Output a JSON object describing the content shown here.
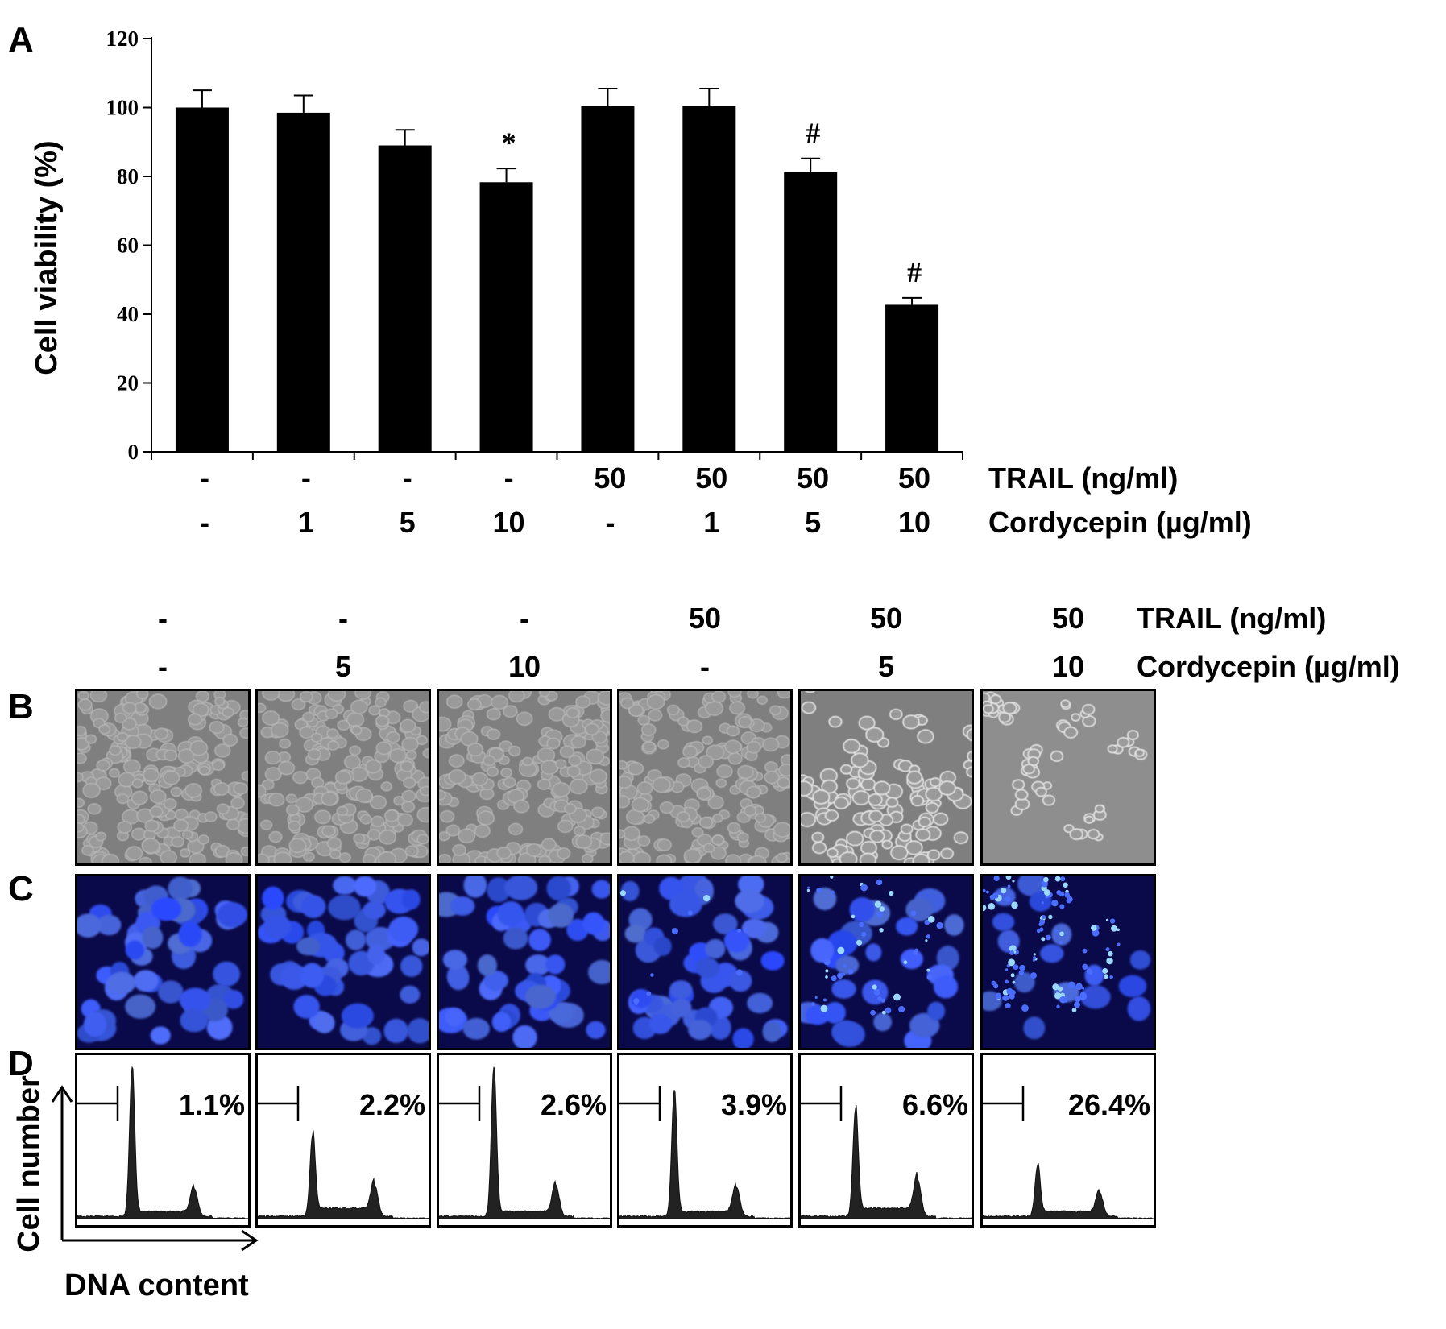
{
  "panels": {
    "a": "A",
    "b": "B",
    "c": "C",
    "d": "D"
  },
  "chart_data": {
    "type": "bar",
    "ylabel": "Cell viability (%)",
    "ylim": [
      0,
      120
    ],
    "yticks": [
      0,
      20,
      40,
      60,
      80,
      100,
      120
    ],
    "row_labels": {
      "trail": "TRAIL (ng/ml)",
      "cordycepin": "Cordycepin (µg/ml)"
    },
    "trail": [
      "-",
      "-",
      "-",
      "-",
      "50",
      "50",
      "50",
      "50"
    ],
    "cordycepin": [
      "-",
      "1",
      "5",
      "10",
      "-",
      "1",
      "5",
      "10"
    ],
    "values": [
      100,
      98.5,
      89,
      78.3,
      100.5,
      100.5,
      81.2,
      42.7
    ],
    "errors": [
      5,
      5,
      4.5,
      4,
      5,
      5,
      4,
      2
    ],
    "significance": [
      "",
      "",
      "",
      "*",
      "",
      "",
      "#",
      "#"
    ],
    "grid": false,
    "legend": "none"
  },
  "conditions": {
    "trail_label": "TRAIL (ng/ml)",
    "cordycepin_label": "Cordycepin (µg/ml)",
    "trail": [
      "-",
      "-",
      "-",
      "50",
      "50",
      "50"
    ],
    "cordycepin": [
      "-",
      "5",
      "10",
      "-",
      "5",
      "10"
    ]
  },
  "morphology": {
    "description_free": true,
    "cell_counts": [
      200,
      190,
      180,
      185,
      120,
      60
    ]
  },
  "dapi": {
    "condensed_fraction": [
      0,
      0,
      0,
      0.05,
      0.25,
      0.5
    ]
  },
  "flow": {
    "percents": [
      "1.1%",
      "2.2%",
      "2.6%",
      "3.9%",
      "6.6%",
      "26.4%"
    ],
    "g1_peak_height": [
      0.97,
      0.53,
      0.97,
      0.82,
      0.7,
      0.33
    ],
    "g2_peak_height": [
      0.18,
      0.2,
      0.2,
      0.19,
      0.24,
      0.15
    ],
    "ylabel": "Cell number",
    "xlabel": "DNA content"
  },
  "colors": {
    "bar": "#000000",
    "dapi_bg": "#0a0a4a",
    "dapi_nuc": "#2f4fe0",
    "phase_bg": "#8a8a8a"
  }
}
